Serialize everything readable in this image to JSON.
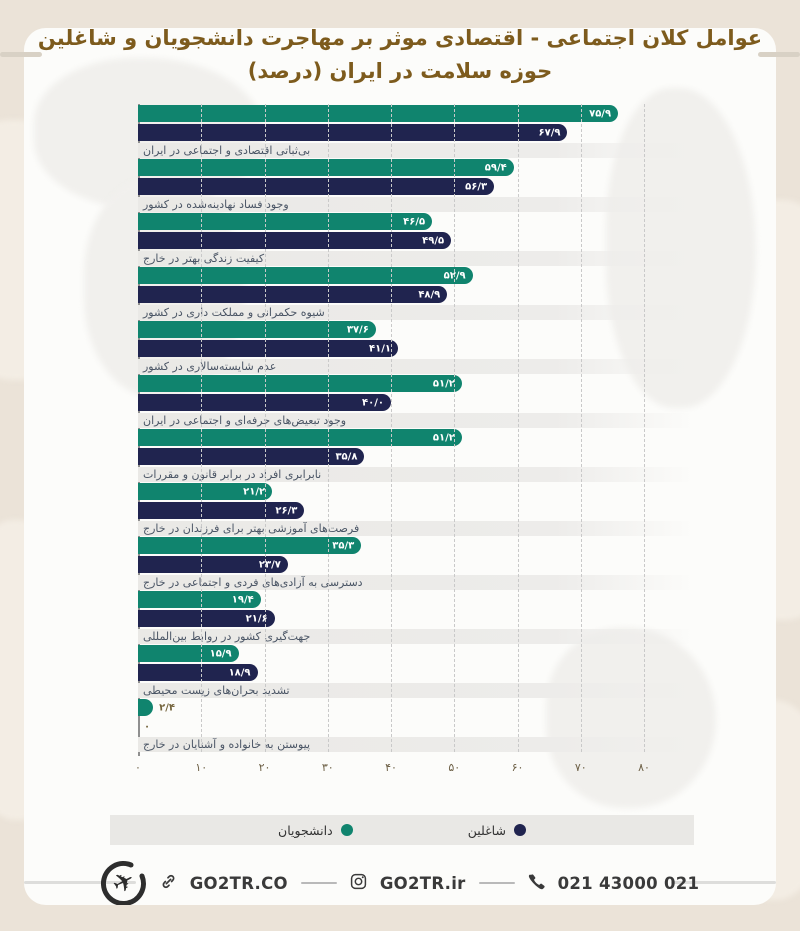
{
  "title": {
    "line1": "عوامل کلان اجتماعی - اقتصادی موثر بر مهاجرت دانشجویان و شاغلین",
    "line2": "حوزه سلامت در ایران (درصد)"
  },
  "colors": {
    "students": "#10846e",
    "workers": "#20244f",
    "title_text": "#7d5b1d",
    "legend_bg": "#e9e8e5",
    "page_bg": "#ebe3d8",
    "card_bg": "#fcfcfa"
  },
  "chart_data": {
    "type": "bar",
    "orientation": "horizontal",
    "title": "عوامل کلان اجتماعی - اقتصادی موثر بر مهاجرت دانشجویان و شاغلین حوزه سلامت در ایران (درصد)",
    "xlabel": "درصد",
    "ylabel": "",
    "xlim": [
      0,
      80
    ],
    "grid": "dashed-vertical",
    "legend_position": "bottom",
    "x_ticks": [
      0,
      10,
      20,
      30,
      40,
      50,
      60,
      70,
      80
    ],
    "x_tick_labels": [
      "۰",
      "۱۰",
      "۲۰",
      "۳۰",
      "۴۰",
      "۵۰",
      "۶۰",
      "۷۰",
      "۸۰"
    ],
    "categories": [
      "بی‌ثباتی اقتصادی و اجتماعی در ایران",
      "وجود فساد نهادینه‌شده در کشور",
      "کیفیت زندگی بهتر در خارج",
      "شیوه حکمرانی و مملکت داری در کشور",
      "عدم شایسته‌سالاری در کشور",
      "وجود تبعیض‌های حرفه‌ای و اجتماعی در ایران",
      "نابرابری افراد در برابر قانون و مقررات",
      "فرصت‌های آموزشی بهتر برای فرزندان در خارج",
      "دسترسی به آزادی‌های فردی و اجتماعی در خارج",
      "جهت‌گیری کشور در روابط بین‌المللی",
      "تشدید بحران‌های زیست محیطی",
      "پیوستن به خانواده و آشنایان در خارج"
    ],
    "series": [
      {
        "name": "دانشجویان",
        "color": "#10846e",
        "values": [
          75.9,
          59.4,
          46.5,
          52.9,
          37.6,
          51.2,
          51.2,
          21.2,
          35.3,
          19.4,
          15.9,
          2.4
        ],
        "labels": [
          "۷۵/۹",
          "۵۹/۴",
          "۴۶/۵",
          "۵۲/۹",
          "۳۷/۶",
          "۵۱/۲",
          "۵۱/۲",
          "۲۱/۲",
          "۳۵/۳",
          "۱۹/۴",
          "۱۵/۹",
          "۲/۴"
        ]
      },
      {
        "name": "شاغلین",
        "color": "#20244f",
        "values": [
          67.9,
          56.3,
          49.5,
          48.9,
          41.1,
          40.0,
          35.8,
          26.3,
          23.7,
          21.6,
          18.9,
          0
        ],
        "labels": [
          "۶۷/۹",
          "۵۶/۳",
          "۴۹/۵",
          "۴۸/۹",
          "۴۱/۱",
          "۴۰/۰",
          "۳۵/۸",
          "۲۶/۳",
          "۲۳/۷",
          "۲۱/۶",
          "۱۸/۹",
          "۰"
        ]
      }
    ]
  },
  "footer": {
    "website": "GO2TR.CO",
    "instagram": "GO2TR.ir",
    "phone": "021 43000 021"
  }
}
